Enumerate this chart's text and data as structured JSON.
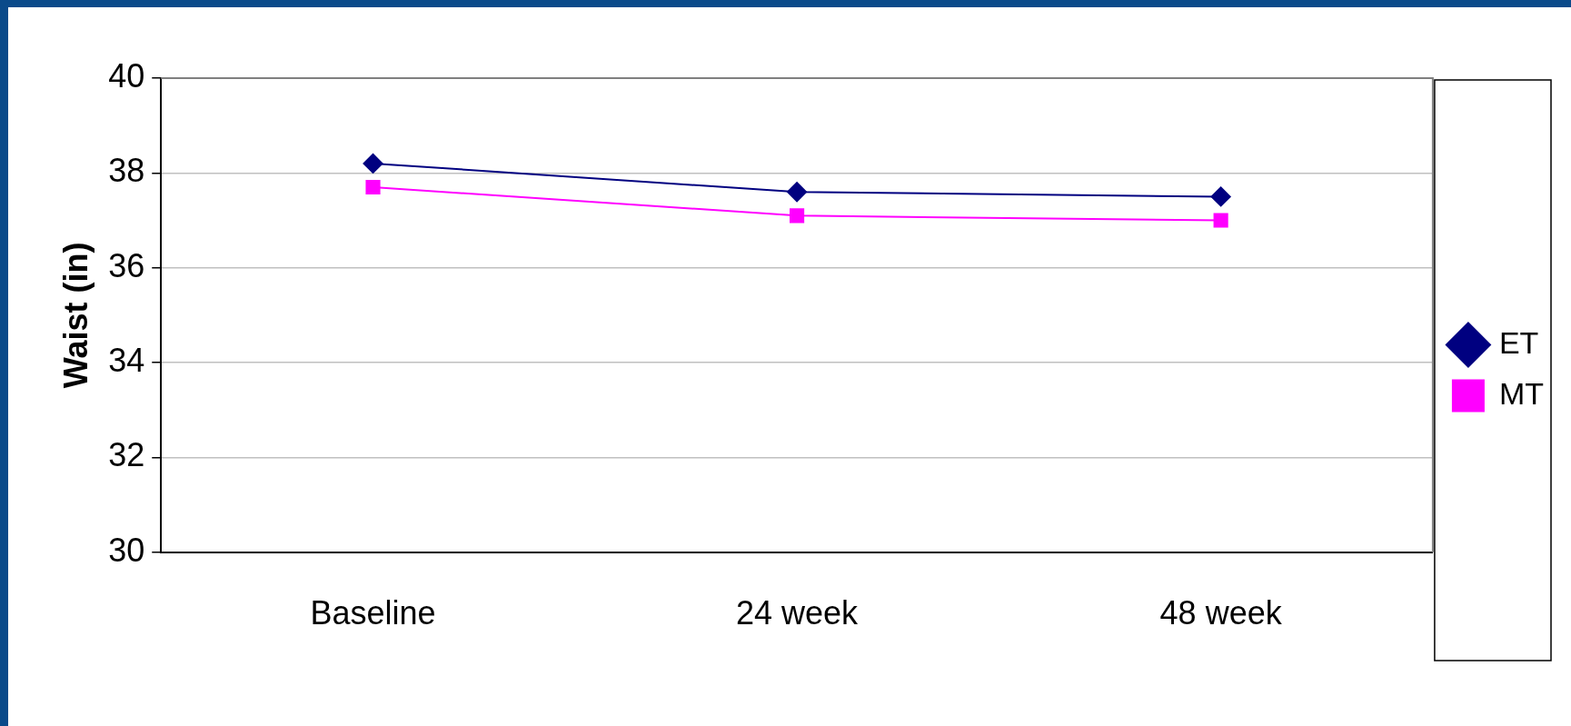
{
  "chart_data": {
    "type": "line",
    "ylabel": "Waist (in)",
    "categories": [
      "Baseline",
      "24 week",
      "48 week"
    ],
    "series": [
      {
        "name": "ET",
        "color": "#000080",
        "marker": "diamond",
        "values": [
          38.2,
          37.6,
          37.5
        ]
      },
      {
        "name": "MT",
        "color": "#ff00ff",
        "marker": "square",
        "values": [
          37.7,
          37.1,
          37.0
        ]
      }
    ],
    "ylim": [
      30,
      40
    ],
    "yticks": [
      30,
      32,
      34,
      36,
      38,
      40
    ],
    "grid": "y",
    "legend": "right",
    "line_style": "solid"
  }
}
